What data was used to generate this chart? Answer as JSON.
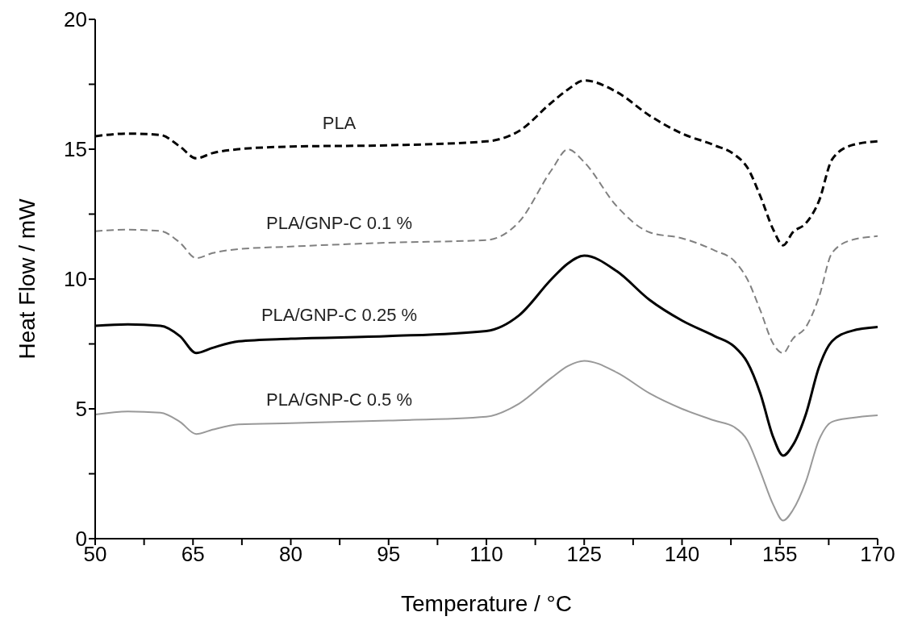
{
  "chart_data": {
    "type": "line",
    "xlabel": "Temperature / °C",
    "ylabel": "Heat Flow / mW",
    "x": [
      50,
      55,
      60,
      63,
      65.5,
      68,
      72,
      80,
      95,
      110,
      115,
      120,
      122.5,
      125,
      130,
      135,
      140,
      145,
      148,
      150,
      152,
      154,
      155.5,
      157,
      159,
      161,
      163,
      166,
      170
    ],
    "xlim": [
      50,
      170
    ],
    "xticks": [
      50,
      {
        "value": 57.5,
        "label": null
      },
      65,
      {
        "value": 72.5,
        "label": null
      },
      80,
      {
        "value": 87.5,
        "label": null
      },
      95,
      {
        "value": 102.5,
        "label": null
      },
      110,
      {
        "value": 117.5,
        "label": null
      },
      125,
      {
        "value": 132.5,
        "label": null
      },
      140,
      {
        "value": 147.5,
        "label": null
      },
      155,
      {
        "value": 162.5,
        "label": null
      },
      170
    ],
    "ylim": [
      0,
      20
    ],
    "yticks": [
      0,
      {
        "value": 2.5,
        "label": null
      },
      5,
      {
        "value": 7.5,
        "label": null
      },
      10,
      {
        "value": 12.5,
        "label": null
      },
      15,
      {
        "value": 17.5,
        "label": null
      },
      20
    ],
    "marker": "none",
    "series": [
      {
        "name": "PLA",
        "color": "#000000",
        "line_style": "dashed",
        "values": [
          15.5,
          15.6,
          15.55,
          15.1,
          14.65,
          14.85,
          15.0,
          15.1,
          15.15,
          15.3,
          15.7,
          16.8,
          17.3,
          17.65,
          17.2,
          16.3,
          15.6,
          15.15,
          14.8,
          14.3,
          13.2,
          11.9,
          11.3,
          11.8,
          12.15,
          13.0,
          14.6,
          15.15,
          15.3
        ]
      },
      {
        "name": "PLA/GNP-C  0.1 %",
        "color": "#808080",
        "line_style": "dashed",
        "values": [
          11.84,
          11.9,
          11.85,
          11.4,
          10.8,
          11.0,
          11.15,
          11.25,
          11.4,
          11.5,
          12.2,
          14.2,
          15.0,
          14.5,
          12.8,
          11.8,
          11.57,
          11.1,
          10.7,
          10.0,
          8.8,
          7.5,
          7.15,
          7.7,
          8.15,
          9.3,
          11.0,
          11.5,
          11.65
        ]
      },
      {
        "name": "PLA/GNP-C  0.25 %",
        "color": "#000000",
        "line_style": "solid",
        "values": [
          8.2,
          8.25,
          8.2,
          7.8,
          7.15,
          7.35,
          7.6,
          7.7,
          7.8,
          8.0,
          8.6,
          10.0,
          10.6,
          10.9,
          10.3,
          9.2,
          8.4,
          7.8,
          7.4,
          6.8,
          5.6,
          3.9,
          3.2,
          3.6,
          4.8,
          6.6,
          7.6,
          8.0,
          8.15
        ]
      },
      {
        "name": "PLA/GNP-C  0.5 %",
        "color": "#999999",
        "line_style": "solid",
        "values": [
          4.78,
          4.9,
          4.85,
          4.5,
          4.03,
          4.2,
          4.4,
          4.45,
          4.55,
          4.7,
          5.2,
          6.2,
          6.65,
          6.85,
          6.4,
          5.6,
          5.0,
          4.55,
          4.3,
          3.8,
          2.6,
          1.3,
          0.7,
          1.1,
          2.2,
          3.8,
          4.5,
          4.65,
          4.75
        ]
      }
    ]
  }
}
